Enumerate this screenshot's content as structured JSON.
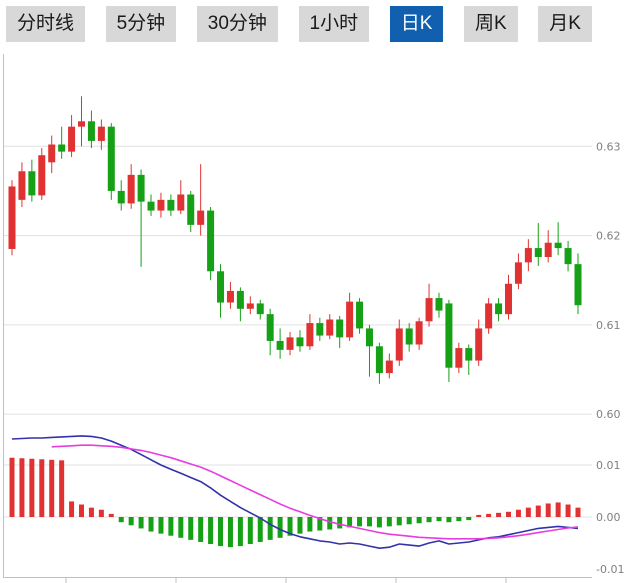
{
  "tabs": {
    "items": [
      {
        "label": "分时线",
        "selected": false
      },
      {
        "label": "5分钟",
        "selected": false
      },
      {
        "label": "30分钟",
        "selected": false
      },
      {
        "label": "1小时",
        "selected": false
      },
      {
        "label": "日K",
        "selected": true
      },
      {
        "label": "周K",
        "selected": false
      },
      {
        "label": "月K",
        "selected": false
      }
    ]
  },
  "colors": {
    "up": "#e03232",
    "down": "#16a016",
    "dif_line": "#3232aa",
    "dea_line": "#e83ce0",
    "tab_bg": "#d8d8d8",
    "tab_selected_bg": "#1160b0",
    "tab_text": "#1a1a1a",
    "tab_selected_text": "#ffffff",
    "grid": "#e0e0e0",
    "axis_line": "#c0c0c0",
    "axis_text": "#808080",
    "background": "#ffffff"
  },
  "chart_data": {
    "type": "candlestick_with_macd",
    "title": "",
    "legend": [],
    "grid": true,
    "price_axis": {
      "ylim": [
        0.598,
        0.64
      ],
      "ticks": [
        {
          "value": 0.63,
          "label": "0.63"
        },
        {
          "value": 0.62,
          "label": "0.62"
        },
        {
          "value": 0.61,
          "label": "0.61"
        },
        {
          "value": 0.6,
          "label": "0.60"
        }
      ]
    },
    "candles_ohlc": [
      [
        0.6185,
        0.6262,
        0.6178,
        0.6255
      ],
      [
        0.624,
        0.6282,
        0.6232,
        0.6272
      ],
      [
        0.6272,
        0.6285,
        0.6238,
        0.6245
      ],
      [
        0.6245,
        0.6298,
        0.624,
        0.629
      ],
      [
        0.6282,
        0.6312,
        0.627,
        0.6302
      ],
      [
        0.6302,
        0.6322,
        0.6286,
        0.6294
      ],
      [
        0.6294,
        0.6335,
        0.6288,
        0.6322
      ],
      [
        0.6322,
        0.6356,
        0.63,
        0.6328
      ],
      [
        0.6328,
        0.634,
        0.6298,
        0.6306
      ],
      [
        0.6306,
        0.633,
        0.6296,
        0.6322
      ],
      [
        0.6322,
        0.6326,
        0.624,
        0.625
      ],
      [
        0.625,
        0.6262,
        0.6228,
        0.6236
      ],
      [
        0.6236,
        0.628,
        0.623,
        0.6268
      ],
      [
        0.6268,
        0.6274,
        0.6165,
        0.6238
      ],
      [
        0.6238,
        0.6246,
        0.6222,
        0.6228
      ],
      [
        0.6228,
        0.6248,
        0.622,
        0.624
      ],
      [
        0.624,
        0.6246,
        0.6222,
        0.6228
      ],
      [
        0.6228,
        0.6262,
        0.6224,
        0.6246
      ],
      [
        0.6246,
        0.625,
        0.6204,
        0.6212
      ],
      [
        0.6212,
        0.628,
        0.62,
        0.6228
      ],
      [
        0.6228,
        0.6232,
        0.615,
        0.616
      ],
      [
        0.616,
        0.6168,
        0.6108,
        0.6125
      ],
      [
        0.6125,
        0.6148,
        0.6118,
        0.6138
      ],
      [
        0.6138,
        0.6142,
        0.6104,
        0.6118
      ],
      [
        0.6118,
        0.6132,
        0.6112,
        0.6124
      ],
      [
        0.6124,
        0.6128,
        0.6106,
        0.6112
      ],
      [
        0.6112,
        0.6118,
        0.6066,
        0.6082
      ],
      [
        0.6082,
        0.6096,
        0.6062,
        0.6072
      ],
      [
        0.6072,
        0.6092,
        0.6066,
        0.6086
      ],
      [
        0.6086,
        0.6094,
        0.607,
        0.6076
      ],
      [
        0.6076,
        0.6112,
        0.6072,
        0.6102
      ],
      [
        0.6102,
        0.6108,
        0.6082,
        0.6088
      ],
      [
        0.6088,
        0.6112,
        0.6084,
        0.6106
      ],
      [
        0.6106,
        0.611,
        0.6074,
        0.6086
      ],
      [
        0.6086,
        0.6136,
        0.6082,
        0.6126
      ],
      [
        0.6126,
        0.613,
        0.609,
        0.6096
      ],
      [
        0.6096,
        0.61,
        0.6042,
        0.6076
      ],
      [
        0.6076,
        0.608,
        0.6034,
        0.6046
      ],
      [
        0.6046,
        0.6068,
        0.604,
        0.606
      ],
      [
        0.606,
        0.6106,
        0.6054,
        0.6096
      ],
      [
        0.6096,
        0.6102,
        0.607,
        0.6078
      ],
      [
        0.6078,
        0.6108,
        0.6072,
        0.6104
      ],
      [
        0.6104,
        0.6146,
        0.6098,
        0.613
      ],
      [
        0.613,
        0.6136,
        0.6108,
        0.6116
      ],
      [
        0.6124,
        0.6128,
        0.6036,
        0.6052
      ],
      [
        0.6052,
        0.608,
        0.6046,
        0.6074
      ],
      [
        0.6074,
        0.6078,
        0.6044,
        0.606
      ],
      [
        0.606,
        0.6106,
        0.6054,
        0.6096
      ],
      [
        0.6096,
        0.613,
        0.609,
        0.6124
      ],
      [
        0.6124,
        0.613,
        0.6104,
        0.6112
      ],
      [
        0.6112,
        0.6156,
        0.6106,
        0.6146
      ],
      [
        0.6146,
        0.618,
        0.614,
        0.617
      ],
      [
        0.617,
        0.6196,
        0.616,
        0.6186
      ],
      [
        0.6186,
        0.6214,
        0.6166,
        0.6176
      ],
      [
        0.6176,
        0.6206,
        0.617,
        0.6192
      ],
      [
        0.6192,
        0.6215,
        0.6178,
        0.6186
      ],
      [
        0.6186,
        0.6194,
        0.616,
        0.6168
      ],
      [
        0.6168,
        0.618,
        0.6112,
        0.6122
      ]
    ],
    "macd": {
      "ylim": [
        -0.013,
        0.0158
      ],
      "ticks": [
        {
          "value": 0.01,
          "label": "0.01"
        },
        {
          "value": 0.0,
          "label": "0.00"
        },
        {
          "value": -0.01,
          "label": "-0.01"
        }
      ],
      "histogram": [
        0.0114,
        0.0113,
        0.0112,
        0.0111,
        0.011,
        0.0109,
        0.003,
        0.0024,
        0.0018,
        0.0014,
        0.0006,
        -0.001,
        -0.0016,
        -0.0022,
        -0.0028,
        -0.0032,
        -0.0036,
        -0.004,
        -0.0044,
        -0.0048,
        -0.0052,
        -0.0056,
        -0.0058,
        -0.0056,
        -0.0052,
        -0.0048,
        -0.0044,
        -0.004,
        -0.0036,
        -0.0032,
        -0.0028,
        -0.0026,
        -0.0024,
        -0.0022,
        -0.002,
        -0.0018,
        -0.0018,
        -0.002,
        -0.0018,
        -0.0016,
        -0.0014,
        -0.0012,
        -0.001,
        -0.0008,
        -0.001,
        -0.0008,
        -0.0006,
        0.0004,
        0.0006,
        0.0008,
        0.001,
        0.0014,
        0.0018,
        0.0022,
        0.0026,
        0.0028,
        0.0024,
        0.0018
      ],
      "dif": [
        0.015,
        0.0151,
        0.0152,
        0.0152,
        0.0153,
        0.0154,
        0.0155,
        0.0156,
        0.0155,
        0.0152,
        0.0146,
        0.0138,
        0.013,
        0.012,
        0.011,
        0.01,
        0.0092,
        0.0084,
        0.0076,
        0.0068,
        0.0056,
        0.0042,
        0.003,
        0.0018,
        0.0008,
        -0.0002,
        -0.0014,
        -0.0024,
        -0.0032,
        -0.0038,
        -0.0042,
        -0.0046,
        -0.0048,
        -0.0052,
        -0.005,
        -0.0052,
        -0.0056,
        -0.006,
        -0.0058,
        -0.0052,
        -0.0054,
        -0.0056,
        -0.005,
        -0.0046,
        -0.0052,
        -0.005,
        -0.0048,
        -0.0044,
        -0.004,
        -0.0038,
        -0.0034,
        -0.003,
        -0.0026,
        -0.0022,
        -0.002,
        -0.0018,
        -0.002,
        -0.0022
      ],
      "dea": [
        null,
        null,
        null,
        null,
        0.0135,
        0.0136,
        0.0137,
        0.0138,
        0.0138,
        0.0137,
        0.0136,
        0.0134,
        0.0131,
        0.0128,
        0.0124,
        0.0119,
        0.0114,
        0.0108,
        0.0102,
        0.0096,
        0.0088,
        0.0079,
        0.007,
        0.0061,
        0.0052,
        0.0043,
        0.0034,
        0.0025,
        0.0017,
        0.001,
        0.0003,
        -0.0003,
        -0.0009,
        -0.0014,
        -0.0018,
        -0.0022,
        -0.0026,
        -0.003,
        -0.0033,
        -0.0035,
        -0.0037,
        -0.0039,
        -0.004,
        -0.0041,
        -0.0042,
        -0.0042,
        -0.0042,
        -0.0042,
        -0.0041,
        -0.004,
        -0.0038,
        -0.0036,
        -0.0033,
        -0.003,
        -0.0027,
        -0.0024,
        -0.0021,
        -0.0019
      ]
    }
  }
}
